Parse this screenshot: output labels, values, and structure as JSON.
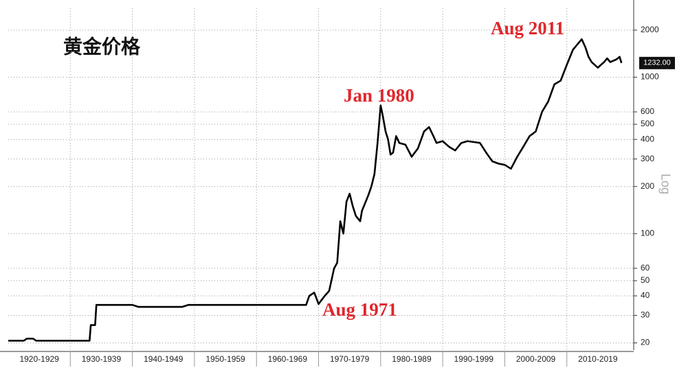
{
  "chart_data": {
    "type": "line",
    "title": "黄金价格",
    "y_label": "Log",
    "log_scale": true,
    "grid": true,
    "color": "#000000",
    "annotations": [
      "Jan 1980",
      "Aug 2011",
      "Aug 1971"
    ],
    "last_label": {
      "value": 1232,
      "label": "1232.00"
    },
    "xlim": [
      1920,
      2020
    ],
    "ylim": [
      18,
      2760
    ],
    "xticks": [
      {
        "value": 1925,
        "label": "1920-1929"
      },
      {
        "value": 1935,
        "label": "1930-1939"
      },
      {
        "value": 1945,
        "label": "1940-1949"
      },
      {
        "value": 1955,
        "label": "1950-1959"
      },
      {
        "value": 1965,
        "label": "1960-1969"
      },
      {
        "value": 1975,
        "label": "1970-1979"
      },
      {
        "value": 1985,
        "label": "1980-1989"
      },
      {
        "value": 1995,
        "label": "1990-1999"
      },
      {
        "value": 2005,
        "label": "2000-2009"
      },
      {
        "value": 2015,
        "label": "2010-2019"
      }
    ],
    "yticks": [
      20,
      30,
      40,
      50,
      60,
      100,
      200,
      300,
      400,
      500,
      600,
      1000,
      2000
    ],
    "x": [
      1920,
      1922.5,
      1923,
      1924,
      1924.5,
      1933.1,
      1933.3,
      1934,
      1934.2,
      1940,
      1941,
      1948,
      1949,
      1968,
      1968.5,
      1969.3,
      1970,
      1971,
      1971.7,
      1972.5,
      1973,
      1973.5,
      1974,
      1974.5,
      1975,
      1975.5,
      1976,
      1976.7,
      1977,
      1978,
      1978.5,
      1979,
      1979.5,
      1980,
      1980.3,
      1980.8,
      1981.2,
      1981.6,
      1982,
      1982.5,
      1983,
      1984,
      1985,
      1985.5,
      1986,
      1987,
      1987.8,
      1988.5,
      1989,
      1990,
      1991,
      1992,
      1993,
      1994,
      1995,
      1996,
      1997,
      1998,
      1999,
      2000,
      2001,
      2002,
      2003,
      2004,
      2005,
      2006,
      2007,
      2008,
      2009,
      2010,
      2011,
      2012.4,
      2013,
      2013.5,
      2014,
      2015,
      2016,
      2016.5,
      2017,
      2018,
      2018.5,
      2018.8
    ],
    "values": [
      20.67,
      20.67,
      21.3,
      21.3,
      20.67,
      20.67,
      26,
      26,
      35,
      35,
      34,
      34,
      35,
      35,
      40,
      42,
      35.5,
      40,
      43,
      60,
      65,
      120,
      100,
      160,
      180,
      150,
      130,
      120,
      140,
      175,
      200,
      240,
      380,
      660,
      580,
      450,
      400,
      320,
      330,
      420,
      380,
      370,
      310,
      330,
      350,
      450,
      480,
      420,
      380,
      390,
      360,
      340,
      380,
      390,
      385,
      380,
      330,
      290,
      280,
      275,
      260,
      310,
      360,
      420,
      450,
      600,
      700,
      900,
      950,
      1200,
      1500,
      1750,
      1550,
      1350,
      1250,
      1150,
      1250,
      1320,
      1250,
      1300,
      1350,
      1232
    ]
  }
}
